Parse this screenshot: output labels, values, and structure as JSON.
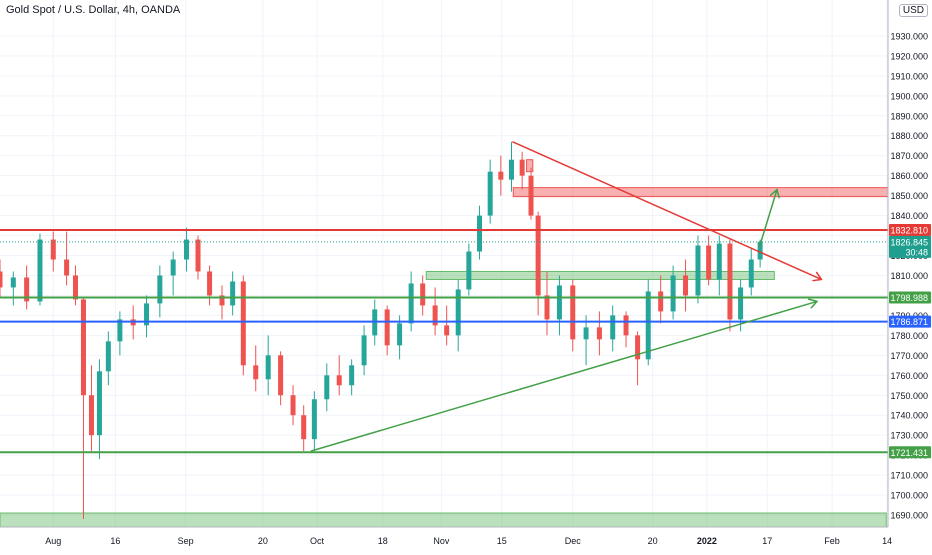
{
  "header": {
    "title": "Gold Spot / U.S. Dollar, 4h, OANDA",
    "currency": "USD"
  },
  "colors": {
    "up": "#26a69a",
    "down": "#ef5350",
    "red": "#e53935",
    "green": "#43a047",
    "blue": "#2962ff",
    "teal": "#1e9e8e"
  },
  "chart_data": {
    "type": "candlestick",
    "title": "Gold Spot / U.S. Dollar, 4h, OANDA",
    "ylim": [
      1684,
      1948
    ],
    "y_ticks": [
      "1690.000",
      "1700.000",
      "1710.000",
      "1720.000",
      "1730.000",
      "1740.000",
      "1750.000",
      "1760.000",
      "1770.000",
      "1780.000",
      "1790.000",
      "1800.000",
      "1810.000",
      "1820.000",
      "1830.000",
      "1840.000",
      "1850.000",
      "1860.000",
      "1870.000",
      "1880.000",
      "1890.000",
      "1900.000",
      "1910.000",
      "1920.000",
      "1930.000"
    ],
    "x_ticks": [
      {
        "label": "Aug",
        "pos": 0.06
      },
      {
        "label": "16",
        "pos": 0.13
      },
      {
        "label": "Sep",
        "pos": 0.209
      },
      {
        "label": "20",
        "pos": 0.296
      },
      {
        "label": "Oct",
        "pos": 0.357
      },
      {
        "label": "18",
        "pos": 0.431
      },
      {
        "label": "Nov",
        "pos": 0.497
      },
      {
        "label": "15",
        "pos": 0.565
      },
      {
        "label": "Dec",
        "pos": 0.645
      },
      {
        "label": "20",
        "pos": 0.735
      },
      {
        "label": "2022",
        "pos": 0.796
      },
      {
        "label": "17",
        "pos": 0.864
      },
      {
        "label": "Feb",
        "pos": 0.937
      },
      {
        "label": "14",
        "pos": 0.999
      }
    ],
    "price_labels": [
      {
        "value": 1832.81,
        "text": "1832.810",
        "color": "#e53935"
      },
      {
        "value": 1826.845,
        "text": "1826.845",
        "sub": "30:48",
        "color": "#1e9e8e"
      },
      {
        "value": 1798.988,
        "text": "1798.988",
        "color": "#43a047"
      },
      {
        "value": 1786.871,
        "text": "1786.871",
        "color": "#2962ff"
      },
      {
        "value": 1721.431,
        "text": "1721.431",
        "color": "#43a047"
      }
    ],
    "hlines": [
      {
        "value": 1832.81,
        "color": "#e53935"
      },
      {
        "value": 1798.988,
        "color": "#43a047"
      },
      {
        "value": 1786.871,
        "color": "#2962ff"
      },
      {
        "value": 1721.431,
        "color": "#43a047"
      }
    ],
    "trend_lines": [
      {
        "x1": 0.577,
        "y1": 1877,
        "x2": 0.925,
        "y2": 1808,
        "color": "#e53935",
        "arrow": true
      },
      {
        "x1": 0.35,
        "y1": 1722,
        "x2": 0.92,
        "y2": 1797,
        "color": "#43a047",
        "arrow": true
      },
      {
        "x1": 0.855,
        "y1": 1824,
        "x2": 0.875,
        "y2": 1853,
        "color": "#43a047",
        "arrow": true
      }
    ],
    "zones": [
      {
        "x1": 0.578,
        "x2": 1.004,
        "y1": 1849.5,
        "y2": 1854,
        "color": "#ef5350"
      },
      {
        "x1": 0.593,
        "x2": 0.6,
        "y1": 1862,
        "y2": 1868,
        "color": "#ef5350"
      },
      {
        "x1": 0.48,
        "x2": 0.872,
        "y1": 1808,
        "y2": 1812,
        "color": "#66bb6a"
      },
      {
        "x1": 0.0,
        "x2": 0.998,
        "y1": 1684,
        "y2": 1691,
        "color": "#66bb6a"
      }
    ],
    "candles": [
      {
        "x": 0.0,
        "o": 1812,
        "h": 1818,
        "l": 1799,
        "c": 1804
      },
      {
        "x": 0.015,
        "o": 1804,
        "h": 1812,
        "l": 1795,
        "c": 1809
      },
      {
        "x": 0.03,
        "o": 1809,
        "h": 1815,
        "l": 1793,
        "c": 1797
      },
      {
        "x": 0.045,
        "o": 1797,
        "h": 1831,
        "l": 1795,
        "c": 1828
      },
      {
        "x": 0.06,
        "o": 1828,
        "h": 1832,
        "l": 1812,
        "c": 1818
      },
      {
        "x": 0.075,
        "o": 1818,
        "h": 1832,
        "l": 1805,
        "c": 1810
      },
      {
        "x": 0.085,
        "o": 1810,
        "h": 1815,
        "l": 1795,
        "c": 1798
      },
      {
        "x": 0.094,
        "o": 1798,
        "h": 1799,
        "l": 1688,
        "c": 1750
      },
      {
        "x": 0.103,
        "o": 1750,
        "h": 1765,
        "l": 1722,
        "c": 1730
      },
      {
        "x": 0.112,
        "o": 1730,
        "h": 1768,
        "l": 1718,
        "c": 1762
      },
      {
        "x": 0.122,
        "o": 1762,
        "h": 1782,
        "l": 1755,
        "c": 1777
      },
      {
        "x": 0.135,
        "o": 1777,
        "h": 1792,
        "l": 1770,
        "c": 1788
      },
      {
        "x": 0.15,
        "o": 1788,
        "h": 1795,
        "l": 1778,
        "c": 1785
      },
      {
        "x": 0.165,
        "o": 1785,
        "h": 1800,
        "l": 1779,
        "c": 1796
      },
      {
        "x": 0.18,
        "o": 1796,
        "h": 1815,
        "l": 1789,
        "c": 1810
      },
      {
        "x": 0.195,
        "o": 1810,
        "h": 1822,
        "l": 1800,
        "c": 1818
      },
      {
        "x": 0.21,
        "o": 1818,
        "h": 1834,
        "l": 1812,
        "c": 1828
      },
      {
        "x": 0.223,
        "o": 1828,
        "h": 1830,
        "l": 1808,
        "c": 1812
      },
      {
        "x": 0.236,
        "o": 1812,
        "h": 1815,
        "l": 1795,
        "c": 1800
      },
      {
        "x": 0.25,
        "o": 1800,
        "h": 1805,
        "l": 1788,
        "c": 1795
      },
      {
        "x": 0.262,
        "o": 1795,
        "h": 1812,
        "l": 1790,
        "c": 1807
      },
      {
        "x": 0.274,
        "o": 1807,
        "h": 1810,
        "l": 1760,
        "c": 1765
      },
      {
        "x": 0.288,
        "o": 1765,
        "h": 1775,
        "l": 1752,
        "c": 1758
      },
      {
        "x": 0.302,
        "o": 1758,
        "h": 1780,
        "l": 1750,
        "c": 1770
      },
      {
        "x": 0.316,
        "o": 1770,
        "h": 1772,
        "l": 1745,
        "c": 1750
      },
      {
        "x": 0.33,
        "o": 1750,
        "h": 1755,
        "l": 1735,
        "c": 1740
      },
      {
        "x": 0.342,
        "o": 1740,
        "h": 1745,
        "l": 1722,
        "c": 1728
      },
      {
        "x": 0.354,
        "o": 1728,
        "h": 1752,
        "l": 1722,
        "c": 1748
      },
      {
        "x": 0.368,
        "o": 1748,
        "h": 1766,
        "l": 1742,
        "c": 1760
      },
      {
        "x": 0.382,
        "o": 1760,
        "h": 1770,
        "l": 1750,
        "c": 1755
      },
      {
        "x": 0.396,
        "o": 1755,
        "h": 1768,
        "l": 1750,
        "c": 1765
      },
      {
        "x": 0.41,
        "o": 1765,
        "h": 1785,
        "l": 1760,
        "c": 1780
      },
      {
        "x": 0.422,
        "o": 1780,
        "h": 1798,
        "l": 1775,
        "c": 1793
      },
      {
        "x": 0.436,
        "o": 1793,
        "h": 1795,
        "l": 1770,
        "c": 1775
      },
      {
        "x": 0.45,
        "o": 1775,
        "h": 1790,
        "l": 1768,
        "c": 1786
      },
      {
        "x": 0.463,
        "o": 1786,
        "h": 1812,
        "l": 1782,
        "c": 1806
      },
      {
        "x": 0.476,
        "o": 1806,
        "h": 1810,
        "l": 1790,
        "c": 1795
      },
      {
        "x": 0.49,
        "o": 1795,
        "h": 1804,
        "l": 1780,
        "c": 1785
      },
      {
        "x": 0.503,
        "o": 1785,
        "h": 1795,
        "l": 1775,
        "c": 1780
      },
      {
        "x": 0.516,
        "o": 1780,
        "h": 1808,
        "l": 1772,
        "c": 1803
      },
      {
        "x": 0.528,
        "o": 1803,
        "h": 1826,
        "l": 1800,
        "c": 1822
      },
      {
        "x": 0.54,
        "o": 1822,
        "h": 1845,
        "l": 1818,
        "c": 1840
      },
      {
        "x": 0.552,
        "o": 1840,
        "h": 1868,
        "l": 1836,
        "c": 1862
      },
      {
        "x": 0.564,
        "o": 1862,
        "h": 1870,
        "l": 1850,
        "c": 1858
      },
      {
        "x": 0.576,
        "o": 1858,
        "h": 1877,
        "l": 1852,
        "c": 1868
      },
      {
        "x": 0.588,
        "o": 1868,
        "h": 1872,
        "l": 1853,
        "c": 1860
      },
      {
        "x": 0.598,
        "o": 1860,
        "h": 1864,
        "l": 1838,
        "c": 1840
      },
      {
        "x": 0.606,
        "o": 1840,
        "h": 1842,
        "l": 1790,
        "c": 1800
      },
      {
        "x": 0.616,
        "o": 1800,
        "h": 1812,
        "l": 1780,
        "c": 1788
      },
      {
        "x": 0.63,
        "o": 1788,
        "h": 1810,
        "l": 1780,
        "c": 1805
      },
      {
        "x": 0.645,
        "o": 1805,
        "h": 1808,
        "l": 1772,
        "c": 1778
      },
      {
        "x": 0.66,
        "o": 1778,
        "h": 1790,
        "l": 1765,
        "c": 1784
      },
      {
        "x": 0.675,
        "o": 1784,
        "h": 1792,
        "l": 1770,
        "c": 1778
      },
      {
        "x": 0.69,
        "o": 1778,
        "h": 1795,
        "l": 1772,
        "c": 1790
      },
      {
        "x": 0.705,
        "o": 1790,
        "h": 1792,
        "l": 1774,
        "c": 1780
      },
      {
        "x": 0.718,
        "o": 1780,
        "h": 1782,
        "l": 1755,
        "c": 1768
      },
      {
        "x": 0.73,
        "o": 1768,
        "h": 1808,
        "l": 1765,
        "c": 1802
      },
      {
        "x": 0.744,
        "o": 1802,
        "h": 1810,
        "l": 1786,
        "c": 1792
      },
      {
        "x": 0.758,
        "o": 1792,
        "h": 1815,
        "l": 1788,
        "c": 1810
      },
      {
        "x": 0.772,
        "o": 1810,
        "h": 1818,
        "l": 1792,
        "c": 1800
      },
      {
        "x": 0.786,
        "o": 1800,
        "h": 1830,
        "l": 1796,
        "c": 1825
      },
      {
        "x": 0.798,
        "o": 1825,
        "h": 1830,
        "l": 1805,
        "c": 1808
      },
      {
        "x": 0.81,
        "o": 1808,
        "h": 1830,
        "l": 1800,
        "c": 1826
      },
      {
        "x": 0.822,
        "o": 1826,
        "h": 1828,
        "l": 1782,
        "c": 1788
      },
      {
        "x": 0.834,
        "o": 1788,
        "h": 1808,
        "l": 1782,
        "c": 1804
      },
      {
        "x": 0.846,
        "o": 1804,
        "h": 1824,
        "l": 1800,
        "c": 1818
      },
      {
        "x": 0.856,
        "o": 1818,
        "h": 1828,
        "l": 1814,
        "c": 1826.845
      }
    ]
  }
}
